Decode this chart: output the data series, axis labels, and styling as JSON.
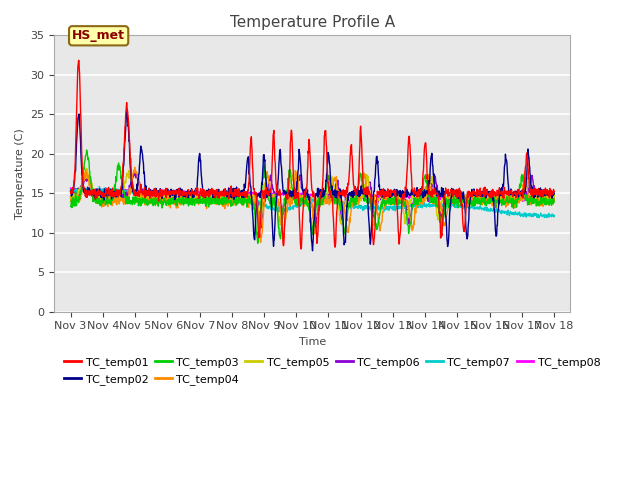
{
  "title": "Temperature Profile A",
  "xlabel": "Time",
  "ylabel": "Temperature (C)",
  "ylim": [
    0,
    35
  ],
  "xlim": [
    2.5,
    18.5
  ],
  "xtick_labels": [
    "Nov 3",
    "Nov 4",
    "Nov 5",
    "Nov 6",
    "Nov 7",
    "Nov 8",
    "Nov 9",
    "Nov 10",
    "Nov 11",
    "Nov 12",
    "Nov 13",
    "Nov 14",
    "Nov 15",
    "Nov 16",
    "Nov 17",
    "Nov 18"
  ],
  "xtick_positions": [
    3,
    4,
    5,
    6,
    7,
    8,
    9,
    10,
    11,
    12,
    13,
    14,
    15,
    16,
    17,
    18
  ],
  "ytick_positions": [
    0,
    5,
    10,
    15,
    20,
    25,
    30,
    35
  ],
  "annotation_text": "HS_met",
  "annotation_color": "#8B0000",
  "annotation_bg": "#FFFFAA",
  "annotation_border": "#8B6914",
  "series_colors": {
    "TC_temp01": "#FF0000",
    "TC_temp02": "#00008B",
    "TC_temp03": "#00CC00",
    "TC_temp04": "#FF8C00",
    "TC_temp05": "#CCCC00",
    "TC_temp06": "#8B00D3",
    "TC_temp07": "#00CCCC",
    "TC_temp08": "#FF00FF"
  },
  "plot_bg": "#E8E8E8",
  "fig_bg": "#FFFFFF",
  "grid_color": "#FFFFFF",
  "title_fontsize": 11,
  "axis_fontsize": 8,
  "tick_fontsize": 8,
  "legend_fontsize": 8,
  "linewidth": 1.0
}
